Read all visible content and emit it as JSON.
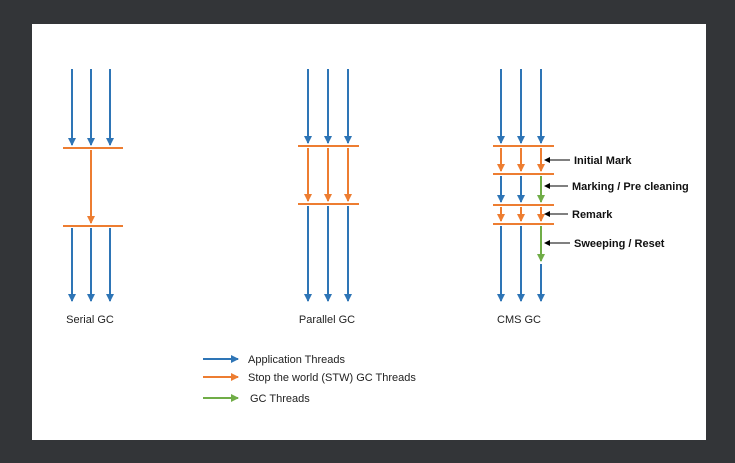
{
  "colors": {
    "application": "#2e75b6",
    "stw": "#ed7d31",
    "gc": "#70ad47",
    "background": "#333538",
    "canvas": "#ffffff"
  },
  "collectors": [
    {
      "label": "Serial GC"
    },
    {
      "label": "Parallel GC"
    },
    {
      "label": "CMS GC"
    }
  ],
  "cms_phases": [
    {
      "label": "Initial Mark"
    },
    {
      "label": "Marking / Pre cleaning"
    },
    {
      "label": "Remark"
    },
    {
      "label": "Sweeping / Reset"
    }
  ],
  "legend": [
    {
      "label": "Application Threads",
      "color_key": "application"
    },
    {
      "label": "Stop the world (STW) GC Threads",
      "color_key": "stw"
    },
    {
      "label": "GC Threads",
      "color_key": "gc"
    }
  ]
}
